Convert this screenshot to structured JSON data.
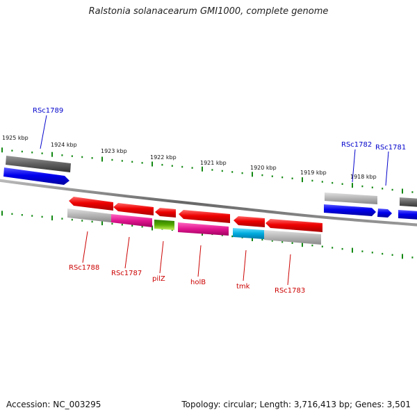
{
  "title": "Ralstonia solanacearum GMI1000, complete genome",
  "footer": {
    "accession": "Accession: NC_003295",
    "summary": "Topology: circular; Length: 3,716,413 bp; Genes: 3,501"
  },
  "scale_labels": [
    "1925 kbp",
    "1924 kbp",
    "1923 kbp",
    "1922 kbp",
    "1921 kbp",
    "1920 kbp",
    "1919 kbp",
    "1918 kbp"
  ],
  "forward_gene_labels": [
    "RSc1789",
    "RSc1782",
    "RSc1781"
  ],
  "reverse_gene_labels": [
    "RSc1788",
    "RSc1787",
    "pilZ",
    "holB",
    "tmk",
    "RSc1783"
  ],
  "colors": {
    "forward_gene": "#0000ee",
    "reverse_gene": "#ee0000",
    "cog_gray": "#9a9a9a",
    "cog_dark": "#555555",
    "cog_magenta": "#e0158f",
    "cog_green": "#55aa00",
    "cog_cyan": "#00aadd",
    "tick": "#118811",
    "backbone": "#777777",
    "forward_label": "#0000cc",
    "reverse_label": "#cc0000"
  }
}
